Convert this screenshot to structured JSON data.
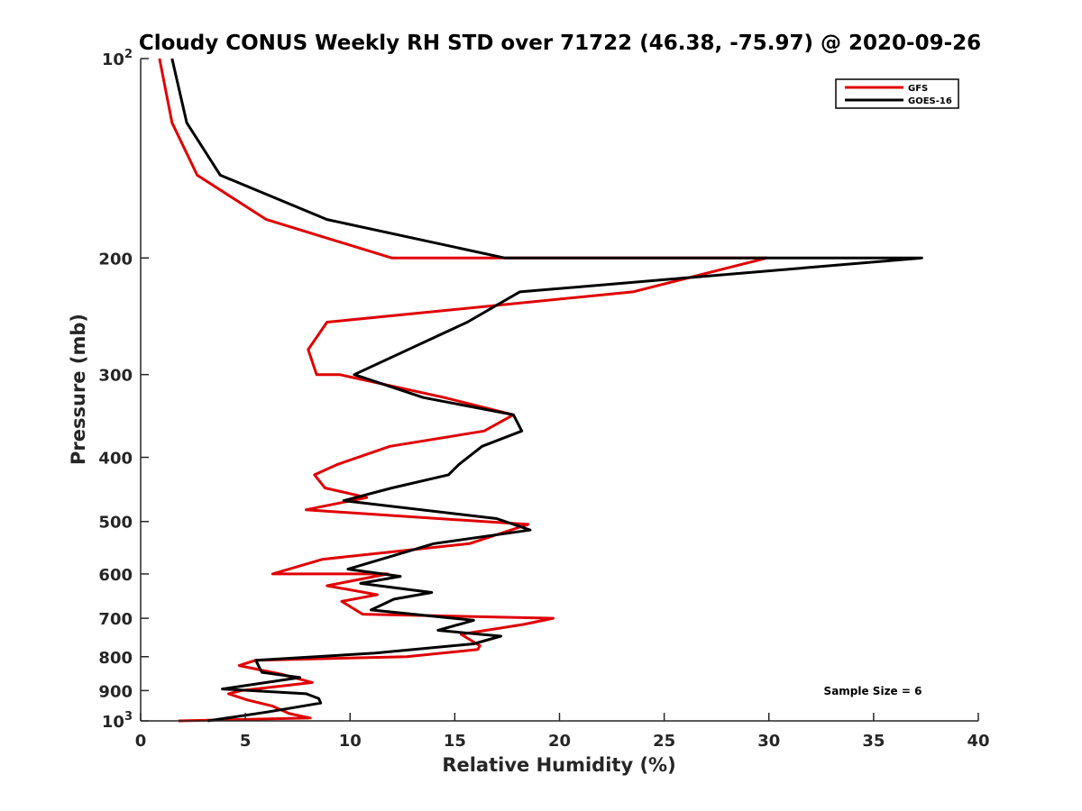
{
  "chart_data": {
    "type": "line",
    "title": "Cloudy CONUS Weekly RH STD over 71722 (46.38, -75.97) @ 2020-09-26",
    "xlabel": "Relative Humidity (%)",
    "ylabel": "Pressure (mb)",
    "xlim": [
      0,
      40
    ],
    "ylim": [
      100,
      1000
    ],
    "yscale": "log",
    "yreverse": true,
    "grid": false,
    "x_ticks": [
      0,
      5,
      10,
      15,
      20,
      25,
      30,
      35,
      40
    ],
    "y_ticks": [
      {
        "value": 100,
        "base": "10",
        "exp": "2"
      },
      {
        "value": 200,
        "label": "200"
      },
      {
        "value": 300,
        "label": "300"
      },
      {
        "value": 400,
        "label": "400"
      },
      {
        "value": 500,
        "label": "500"
      },
      {
        "value": 600,
        "label": "600"
      },
      {
        "value": 700,
        "label": "700"
      },
      {
        "value": 800,
        "label": "800"
      },
      {
        "value": 900,
        "label": "900"
      },
      {
        "value": 1000,
        "base": "10",
        "exp": "3"
      }
    ],
    "legend_position": "top-right",
    "annotation": "Sample Size = 6",
    "series": [
      {
        "name": "GFS",
        "color": "#e00000",
        "points": [
          [
            0.9,
            100
          ],
          [
            1.5,
            125
          ],
          [
            2.7,
            150
          ],
          [
            6,
            175
          ],
          [
            12,
            200
          ],
          [
            29.9,
            200
          ],
          [
            23.5,
            225
          ],
          [
            8.9,
            250
          ],
          [
            8,
            275
          ],
          [
            8.4,
            300
          ],
          [
            9.5,
            300
          ],
          [
            14.5,
            325
          ],
          [
            17.8,
            345
          ],
          [
            16.4,
            365
          ],
          [
            11.9,
            385
          ],
          [
            9.4,
            410
          ],
          [
            8.3,
            425
          ],
          [
            8.8,
            445
          ],
          [
            10.8,
            460
          ],
          [
            7.9,
            480
          ],
          [
            12.1,
            490
          ],
          [
            18.5,
            505
          ],
          [
            15.7,
            540
          ],
          [
            8.7,
            570
          ],
          [
            6.3,
            600
          ],
          [
            11.8,
            600
          ],
          [
            8.9,
            625
          ],
          [
            11.3,
            645
          ],
          [
            9.6,
            660
          ],
          [
            10.6,
            690
          ],
          [
            19.7,
            700
          ],
          [
            18.3,
            715
          ],
          [
            15.3,
            740
          ],
          [
            16.2,
            770
          ],
          [
            16.1,
            780
          ],
          [
            12.7,
            800
          ],
          [
            5.5,
            810
          ],
          [
            4.7,
            825
          ],
          [
            6.7,
            850
          ],
          [
            8.2,
            875
          ],
          [
            4.8,
            900
          ],
          [
            4.2,
            910
          ],
          [
            5.1,
            930
          ],
          [
            6.3,
            950
          ],
          [
            7.1,
            975
          ],
          [
            8.1,
            990
          ],
          [
            1.8,
            1000
          ]
        ]
      },
      {
        "name": "GOES-16",
        "color": "#000000",
        "points": [
          [
            1.5,
            100
          ],
          [
            2.2,
            125
          ],
          [
            3.8,
            150
          ],
          [
            8.9,
            175
          ],
          [
            17.4,
            200
          ],
          [
            37.3,
            200
          ],
          [
            18.1,
            225
          ],
          [
            15.6,
            250
          ],
          [
            10.2,
            300
          ],
          [
            13.5,
            325
          ],
          [
            17.8,
            345
          ],
          [
            18.2,
            365
          ],
          [
            16.3,
            385
          ],
          [
            15.2,
            410
          ],
          [
            14.7,
            425
          ],
          [
            12,
            445
          ],
          [
            9.7,
            465
          ],
          [
            17,
            495
          ],
          [
            18.6,
            515
          ],
          [
            14,
            540
          ],
          [
            11.9,
            565
          ],
          [
            9.9,
            590
          ],
          [
            12.4,
            605
          ],
          [
            10.5,
            620
          ],
          [
            13.9,
            640
          ],
          [
            12.1,
            655
          ],
          [
            11,
            680
          ],
          [
            15.9,
            705
          ],
          [
            14.2,
            730
          ],
          [
            17.2,
            745
          ],
          [
            15.9,
            765
          ],
          [
            11.2,
            790
          ],
          [
            5.5,
            810
          ],
          [
            5.7,
            835
          ],
          [
            5.8,
            845
          ],
          [
            7.6,
            860
          ],
          [
            3.9,
            895
          ],
          [
            7.9,
            910
          ],
          [
            8.5,
            925
          ],
          [
            8.6,
            940
          ],
          [
            7.3,
            955
          ],
          [
            6,
            970
          ],
          [
            3.2,
            1000
          ]
        ]
      }
    ]
  }
}
